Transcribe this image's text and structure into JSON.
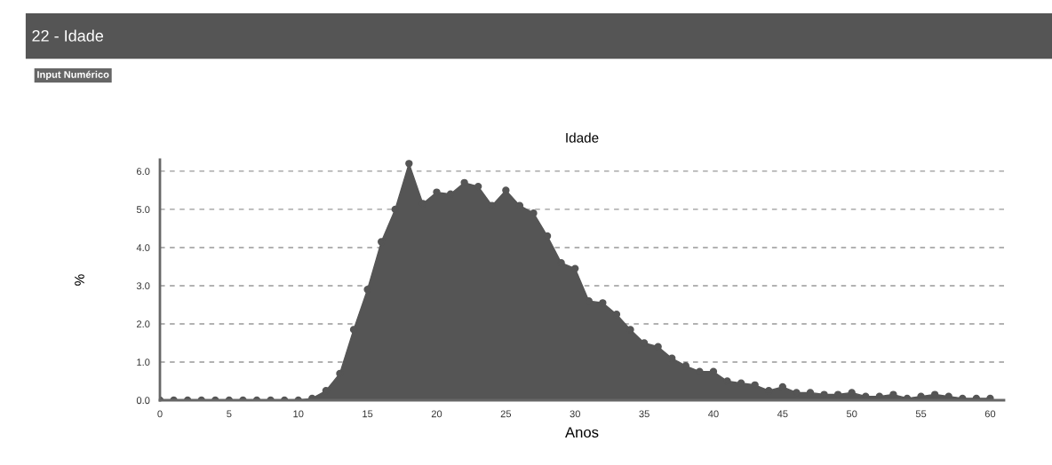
{
  "chart_data": {
    "type": "area",
    "title": "Idade",
    "xlabel": "Anos",
    "ylabel": "%",
    "annotations": [
      "22 - Idade",
      "Input Numérico"
    ],
    "x": [
      0,
      1,
      2,
      3,
      4,
      5,
      6,
      7,
      8,
      9,
      10,
      11,
      12,
      13,
      14,
      15,
      16,
      17,
      18,
      19,
      20,
      21,
      22,
      23,
      24,
      25,
      26,
      27,
      28,
      29,
      30,
      31,
      32,
      33,
      34,
      35,
      36,
      37,
      38,
      39,
      40,
      41,
      42,
      43,
      44,
      45,
      46,
      47,
      48,
      49,
      50,
      51,
      52,
      53,
      54,
      55,
      56,
      57,
      58,
      59,
      60
    ],
    "series": [
      {
        "color": "#555555",
        "values": [
          0,
          0,
          0,
          0,
          0,
          0,
          0,
          0,
          0,
          0,
          0,
          0.05,
          0.25,
          0.7,
          1.85,
          2.9,
          4.15,
          5.0,
          6.2,
          5.15,
          5.45,
          5.4,
          5.7,
          5.6,
          5.1,
          5.5,
          5.1,
          4.9,
          4.3,
          3.6,
          3.45,
          2.6,
          2.55,
          2.25,
          1.85,
          1.5,
          1.4,
          1.1,
          0.9,
          0.75,
          0.75,
          0.5,
          0.45,
          0.4,
          0.25,
          0.35,
          0.2,
          0.2,
          0.15,
          0.15,
          0.2,
          0.1,
          0.1,
          0.15,
          0.05,
          0.1,
          0.15,
          0.1,
          0.05,
          0.05,
          0.05
        ]
      }
    ],
    "xlim": [
      0,
      61
    ],
    "xticks": [
      0,
      5,
      10,
      15,
      20,
      25,
      30,
      35,
      40,
      45,
      50,
      55,
      60
    ],
    "ylim": [
      0,
      6.3
    ],
    "yticks": [
      {
        "value": 0,
        "label": "0.0"
      },
      {
        "value": 1,
        "label": "1.0"
      },
      {
        "value": 2,
        "label": "2.0"
      },
      {
        "value": 3,
        "label": "3.0"
      },
      {
        "value": 4,
        "label": "4.0"
      },
      {
        "value": 5,
        "label": "5.0"
      },
      {
        "value": 6,
        "label": "6.0"
      }
    ],
    "grid": "y",
    "marker": "circle",
    "legend": false
  }
}
